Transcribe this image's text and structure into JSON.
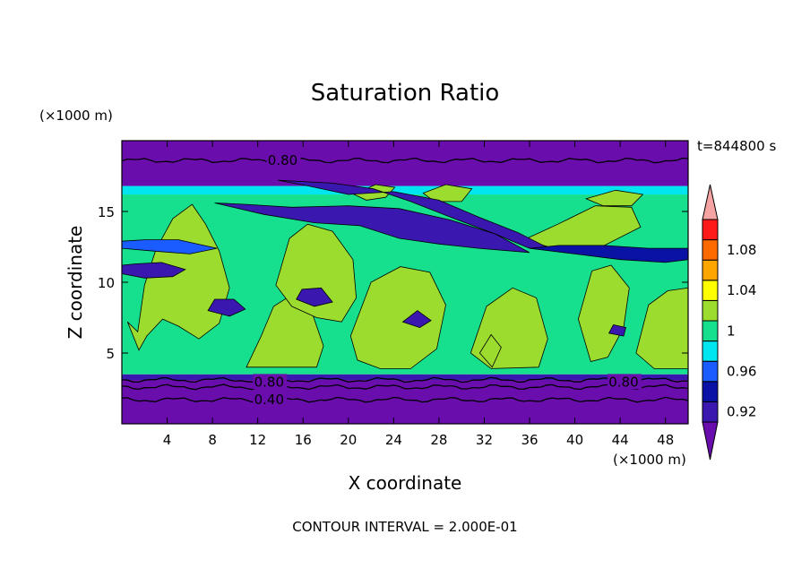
{
  "chart_data": {
    "type": "heatmap",
    "title": "Saturation Ratio",
    "xlabel": "X coordinate",
    "ylabel": "Z coordinate",
    "x_unit": "(×1000 m)",
    "y_unit": "(×1000 m)",
    "time_label": "t=844800 s",
    "footer": "CONTOUR INTERVAL = 2.000E-01",
    "xlim": [
      0,
      50
    ],
    "ylim": [
      0,
      20
    ],
    "x_ticks": [
      4,
      8,
      12,
      16,
      20,
      24,
      28,
      32,
      36,
      40,
      44,
      48
    ],
    "y_ticks": [
      5,
      10,
      15
    ],
    "colorbar": {
      "levels": [
        0.92,
        0.94,
        0.96,
        0.98,
        1.0,
        1.02,
        1.04,
        1.06,
        1.08,
        1.1
      ],
      "tick_labels": [
        "0.92",
        "0.96",
        "1",
        "1.04",
        "1.08"
      ],
      "colors": [
        "#6a0dad",
        "#3a18b0",
        "#0a12a6",
        "#1a5cff",
        "#00e6f0",
        "#16e08e",
        "#9bdc2e",
        "#ffff00",
        "#ffa500",
        "#ff6a00",
        "#ff1a1a",
        "#f5a3a3"
      ]
    },
    "contour_labels": [
      {
        "text": "0.80",
        "x": 14.2,
        "y": 18.6
      },
      {
        "text": "0.80",
        "x": 13.0,
        "y": 2.95
      },
      {
        "text": "0.80",
        "x": 44.3,
        "y": 2.95
      },
      {
        "text": "0.40",
        "x": 13.0,
        "y": 1.7
      }
    ],
    "bands": [
      {
        "z_bottom": 0.0,
        "z_top": 3.1,
        "value": 0.4
      },
      {
        "z_bottom": 3.1,
        "z_top": 3.5,
        "value": 0.9
      },
      {
        "z_bottom": 3.5,
        "z_top": 16.2,
        "value": 0.99
      },
      {
        "z_bottom": 16.2,
        "z_top": 16.8,
        "value": 0.96
      },
      {
        "z_bottom": 16.8,
        "z_top": 20.0,
        "value": 0.8
      }
    ],
    "regions": [
      {
        "value": 1.01,
        "points": [
          [
            0.5,
            7.2
          ],
          [
            1.4,
            6.5
          ],
          [
            2.0,
            9.8
          ],
          [
            3.0,
            12.3
          ],
          [
            4.5,
            14.5
          ],
          [
            6.2,
            15.5
          ],
          [
            7.4,
            14.1
          ],
          [
            8.6,
            12.2
          ],
          [
            9.5,
            9.6
          ],
          [
            8.6,
            7.1
          ],
          [
            6.8,
            6.0
          ],
          [
            5.0,
            6.9
          ],
          [
            3.6,
            7.4
          ],
          [
            2.2,
            6.2
          ],
          [
            1.5,
            5.2
          ]
        ]
      },
      {
        "value": 1.01,
        "points": [
          [
            11.0,
            4.0
          ],
          [
            12.3,
            6.2
          ],
          [
            13.4,
            8.3
          ],
          [
            15.0,
            9.1
          ],
          [
            16.6,
            8.3
          ],
          [
            17.8,
            5.5
          ],
          [
            17.2,
            4.0
          ]
        ]
      },
      {
        "value": 1.01,
        "points": [
          [
            13.6,
            9.8
          ],
          [
            14.8,
            13.1
          ],
          [
            16.4,
            14.1
          ],
          [
            18.6,
            13.6
          ],
          [
            20.4,
            11.6
          ],
          [
            20.7,
            8.9
          ],
          [
            19.4,
            7.2
          ],
          [
            17.2,
            7.5
          ],
          [
            15.0,
            8.3
          ]
        ]
      },
      {
        "value": 1.01,
        "points": [
          [
            20.2,
            6.2
          ],
          [
            22.0,
            10.0
          ],
          [
            24.6,
            11.1
          ],
          [
            27.2,
            10.7
          ],
          [
            28.6,
            8.4
          ],
          [
            27.8,
            5.3
          ],
          [
            25.5,
            3.9
          ],
          [
            22.8,
            3.9
          ],
          [
            20.8,
            4.5
          ]
        ]
      },
      {
        "value": 1.01,
        "points": [
          [
            30.8,
            5.0
          ],
          [
            32.2,
            8.3
          ],
          [
            34.5,
            9.6
          ],
          [
            36.6,
            8.9
          ],
          [
            37.6,
            6.0
          ],
          [
            36.8,
            4.0
          ],
          [
            32.6,
            3.9
          ]
        ]
      },
      {
        "value": 1.01,
        "points": [
          [
            40.3,
            7.4
          ],
          [
            41.5,
            10.8
          ],
          [
            43.2,
            11.2
          ],
          [
            44.8,
            9.6
          ],
          [
            44.3,
            6.8
          ],
          [
            42.9,
            4.7
          ],
          [
            41.4,
            4.4
          ]
        ]
      },
      {
        "value": 1.01,
        "points": [
          [
            45.4,
            5.0
          ],
          [
            46.5,
            8.4
          ],
          [
            48.2,
            9.4
          ],
          [
            50.0,
            9.6
          ],
          [
            50.0,
            3.9
          ],
          [
            47.0,
            3.9
          ]
        ]
      },
      {
        "value": 1.01,
        "points": [
          [
            35.5,
            13.0
          ],
          [
            38.5,
            14.1
          ],
          [
            41.8,
            15.4
          ],
          [
            45.0,
            15.3
          ],
          [
            45.8,
            13.9
          ],
          [
            42.6,
            12.6
          ],
          [
            38.6,
            12.3
          ]
        ]
      },
      {
        "value": 1.01,
        "points": [
          [
            20.5,
            16.2
          ],
          [
            22.4,
            16.9
          ],
          [
            24.1,
            16.7
          ],
          [
            23.3,
            16.0
          ],
          [
            21.6,
            15.8
          ]
        ]
      },
      {
        "value": 1.01,
        "points": [
          [
            26.6,
            16.3
          ],
          [
            28.6,
            16.9
          ],
          [
            30.9,
            16.6
          ],
          [
            30.0,
            15.7
          ],
          [
            27.6,
            15.7
          ]
        ]
      },
      {
        "value": 1.01,
        "points": [
          [
            41.0,
            15.9
          ],
          [
            43.6,
            16.5
          ],
          [
            46.0,
            16.2
          ],
          [
            45.0,
            15.4
          ],
          [
            42.5,
            15.4
          ]
        ]
      },
      {
        "value": 1.01,
        "points": [
          [
            31.6,
            5.0
          ],
          [
            32.6,
            6.3
          ],
          [
            33.5,
            5.4
          ],
          [
            32.7,
            4.0
          ]
        ]
      },
      {
        "value": 0.91,
        "points": [
          [
            13.8,
            17.2
          ],
          [
            18.6,
            17.0
          ],
          [
            22.2,
            16.6
          ],
          [
            25.5,
            15.7
          ],
          [
            29.0,
            14.6
          ],
          [
            33.0,
            13.4
          ],
          [
            36.0,
            12.4
          ],
          [
            38.2,
            12.2
          ],
          [
            35.0,
            13.5
          ],
          [
            31.5,
            14.6
          ],
          [
            28.0,
            15.8
          ],
          [
            24.0,
            16.4
          ],
          [
            20.0,
            16.2
          ],
          [
            16.5,
            16.8
          ]
        ]
      },
      {
        "value": 0.91,
        "points": [
          [
            8.2,
            15.6
          ],
          [
            12.5,
            14.8
          ],
          [
            17.0,
            14.2
          ],
          [
            21.0,
            14.0
          ],
          [
            24.5,
            13.1
          ],
          [
            28.0,
            12.7
          ],
          [
            31.5,
            12.4
          ],
          [
            36.0,
            12.1
          ],
          [
            33.0,
            13.4
          ],
          [
            29.0,
            14.4
          ],
          [
            24.5,
            15.2
          ],
          [
            20.0,
            15.4
          ],
          [
            15.0,
            15.3
          ],
          [
            11.0,
            15.5
          ]
        ]
      },
      {
        "value": 0.93,
        "points": [
          [
            36.0,
            12.4
          ],
          [
            40.0,
            12.0
          ],
          [
            44.0,
            11.6
          ],
          [
            48.0,
            11.4
          ],
          [
            50.0,
            11.6
          ],
          [
            50.0,
            12.4
          ],
          [
            46.5,
            12.4
          ],
          [
            42.5,
            12.6
          ],
          [
            38.6,
            12.6
          ]
        ]
      },
      {
        "value": 0.91,
        "points": [
          [
            0.0,
            10.6
          ],
          [
            2.0,
            10.3
          ],
          [
            4.5,
            10.4
          ],
          [
            5.6,
            10.9
          ],
          [
            3.5,
            11.4
          ],
          [
            1.2,
            11.3
          ],
          [
            0.0,
            11.2
          ]
        ]
      },
      {
        "value": 0.91,
        "points": [
          [
            7.6,
            8.0
          ],
          [
            9.5,
            7.6
          ],
          [
            10.9,
            8.1
          ],
          [
            9.9,
            8.8
          ],
          [
            8.2,
            8.8
          ]
        ]
      },
      {
        "value": 0.91,
        "points": [
          [
            15.4,
            8.8
          ],
          [
            17.0,
            8.3
          ],
          [
            18.6,
            8.6
          ],
          [
            17.6,
            9.6
          ],
          [
            15.9,
            9.5
          ]
        ]
      },
      {
        "value": 0.91,
        "points": [
          [
            24.8,
            7.2
          ],
          [
            26.3,
            6.8
          ],
          [
            27.3,
            7.3
          ],
          [
            26.1,
            8.0
          ]
        ]
      },
      {
        "value": 0.91,
        "points": [
          [
            43.0,
            6.4
          ],
          [
            44.3,
            6.2
          ],
          [
            44.5,
            6.8
          ],
          [
            43.4,
            7.0
          ]
        ]
      },
      {
        "value": 0.95,
        "points": [
          [
            0.0,
            12.4
          ],
          [
            2.8,
            12.2
          ],
          [
            6.0,
            12.0
          ],
          [
            8.4,
            12.4
          ],
          [
            5.0,
            13.0
          ],
          [
            2.0,
            13.0
          ],
          [
            0.0,
            12.9
          ]
        ]
      }
    ]
  }
}
